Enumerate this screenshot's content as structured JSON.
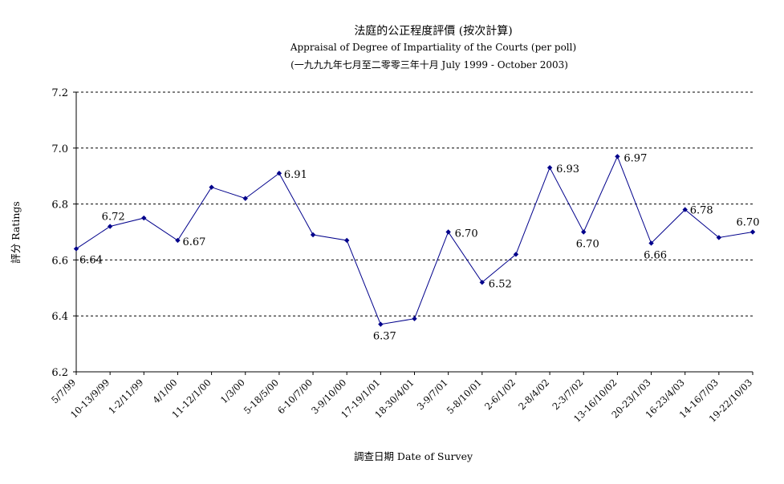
{
  "chart_data": {
    "type": "line",
    "title": "法庭的公正程度評價 (按次計算)",
    "subtitle": "Appraisal of Degree of Impartiality of the Courts (per poll)",
    "subtitle2": "(一九九九年七月至二零零三年十月 July 1999 - October 2003)",
    "xlabel": "調查日期 Date of Survey",
    "ylabel": "評分 Ratings",
    "ylim": [
      6.2,
      7.2
    ],
    "yticks": [
      "6.2",
      "6.4",
      "6.6",
      "6.8",
      "7.0",
      "7.2"
    ],
    "grid": true,
    "line_color": "#00008B",
    "categories": [
      "5/7/99",
      "10-13/9/99",
      "1-2/11/99",
      "4/1/00",
      "11-12/1/00",
      "1/3/00",
      "5-18/5/00",
      "6-10/7/00",
      "3-9/10/00",
      "17-19/1/01",
      "18-30/4/01",
      "3-9/7/01",
      "5-8/10/01",
      "2-6/1/02",
      "2-8/4/02",
      "2-3/7/02",
      "13-16/10/02",
      "20-23/1/03",
      "16-23/4/03",
      "14-16/7/03",
      "19-22/10/03"
    ],
    "series": [
      {
        "values": [
          6.64,
          6.72,
          6.75,
          6.67,
          6.86,
          6.82,
          6.91,
          6.69,
          6.67,
          6.37,
          6.39,
          6.7,
          6.52,
          6.62,
          6.93,
          6.7,
          6.97,
          6.66,
          6.78,
          6.68,
          6.7
        ]
      }
    ],
    "data_labels": [
      {
        "index": 0,
        "text": "6.64"
      },
      {
        "index": 1,
        "text": "6.72"
      },
      {
        "index": 3,
        "text": "6.67"
      },
      {
        "index": 6,
        "text": "6.91"
      },
      {
        "index": 9,
        "text": "6.37"
      },
      {
        "index": 11,
        "text": "6.70"
      },
      {
        "index": 12,
        "text": "6.52"
      },
      {
        "index": 14,
        "text": "6.93"
      },
      {
        "index": 15,
        "text": "6.70"
      },
      {
        "index": 16,
        "text": "6.97"
      },
      {
        "index": 17,
        "text": "6.66"
      },
      {
        "index": 18,
        "text": "6.78"
      },
      {
        "index": 20,
        "text": "6.70"
      }
    ]
  }
}
